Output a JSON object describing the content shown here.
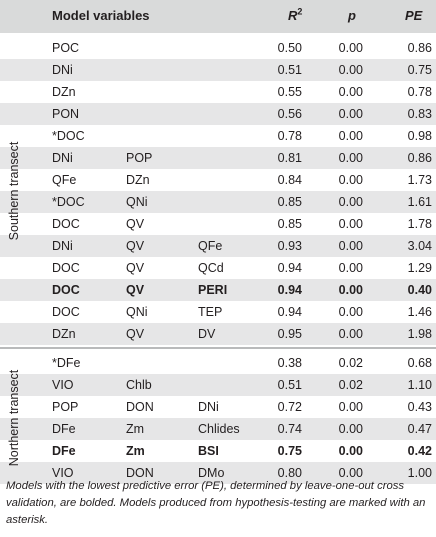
{
  "header": {
    "model_variables": "Model variables",
    "r2": "R",
    "r2_sup": "2",
    "p": "p",
    "pe": "PE"
  },
  "sections": [
    {
      "label": "Southern transect",
      "rows": [
        {
          "v1": "POC",
          "v2": "",
          "v3": "",
          "r2": "0.50",
          "p": "0.00",
          "pe": "0.86",
          "bold": false
        },
        {
          "v1": "DNi",
          "v2": "",
          "v3": "",
          "r2": "0.51",
          "p": "0.00",
          "pe": "0.75",
          "bold": false
        },
        {
          "v1": "DZn",
          "v2": "",
          "v3": "",
          "r2": "0.55",
          "p": "0.00",
          "pe": "0.78",
          "bold": false
        },
        {
          "v1": "PON",
          "v2": "",
          "v3": "",
          "r2": "0.56",
          "p": "0.00",
          "pe": "0.83",
          "bold": false
        },
        {
          "v1": "*DOC",
          "v2": "",
          "v3": "",
          "r2": "0.78",
          "p": "0.00",
          "pe": "0.98",
          "bold": false
        },
        {
          "v1": "DNi",
          "v2": "POP",
          "v3": "",
          "r2": "0.81",
          "p": "0.00",
          "pe": "0.86",
          "bold": false
        },
        {
          "v1": "QFe",
          "v2": "DZn",
          "v3": "",
          "r2": "0.84",
          "p": "0.00",
          "pe": "1.73",
          "bold": false
        },
        {
          "v1": "*DOC",
          "v2": "QNi",
          "v3": "",
          "r2": "0.85",
          "p": "0.00",
          "pe": "1.61",
          "bold": false
        },
        {
          "v1": "DOC",
          "v2": "QV",
          "v3": "",
          "r2": "0.85",
          "p": "0.00",
          "pe": "1.78",
          "bold": false
        },
        {
          "v1": "DNi",
          "v2": "QV",
          "v3": "QFe",
          "r2": "0.93",
          "p": "0.00",
          "pe": "3.04",
          "bold": false
        },
        {
          "v1": "DOC",
          "v2": "QV",
          "v3": "QCd",
          "r2": "0.94",
          "p": "0.00",
          "pe": "1.29",
          "bold": false
        },
        {
          "v1": "DOC",
          "v2": "QV",
          "v3": "PERI",
          "r2": "0.94",
          "p": "0.00",
          "pe": "0.40",
          "bold": true
        },
        {
          "v1": "DOC",
          "v2": "QNi",
          "v3": "TEP",
          "r2": "0.94",
          "p": "0.00",
          "pe": "1.46",
          "bold": false
        },
        {
          "v1": "DZn",
          "v2": "QV",
          "v3": "DV",
          "r2": "0.95",
          "p": "0.00",
          "pe": "1.98",
          "bold": false
        }
      ]
    },
    {
      "label": "Northern transect",
      "rows": [
        {
          "v1": "*DFe",
          "v2": "",
          "v3": "",
          "r2": "0.38",
          "p": "0.02",
          "pe": "0.68",
          "bold": false
        },
        {
          "v1": "VIO",
          "v2": "Chlb",
          "v3": "",
          "r2": "0.51",
          "p": "0.02",
          "pe": "1.10",
          "bold": false
        },
        {
          "v1": "POP",
          "v2": "DON",
          "v3": "DNi",
          "r2": "0.72",
          "p": "0.00",
          "pe": "0.43",
          "bold": false
        },
        {
          "v1": "DFe",
          "v2": "Zm",
          "v3": "Chlides",
          "r2": "0.74",
          "p": "0.00",
          "pe": "0.47",
          "bold": false
        },
        {
          "v1": "DFe",
          "v2": "Zm",
          "v3": "BSI",
          "r2": "0.75",
          "p": "0.00",
          "pe": "0.42",
          "bold": true
        },
        {
          "v1": "VIO",
          "v2": "DON",
          "v3": "DMo",
          "r2": "0.80",
          "p": "0.00",
          "pe": "1.00",
          "bold": false
        }
      ]
    }
  ],
  "caption": "Models with the lowest predictive error (PE), determined by leave-one-out cross validation, are bolded. Models produced from hypothesis-testing are marked with an asterisk."
}
